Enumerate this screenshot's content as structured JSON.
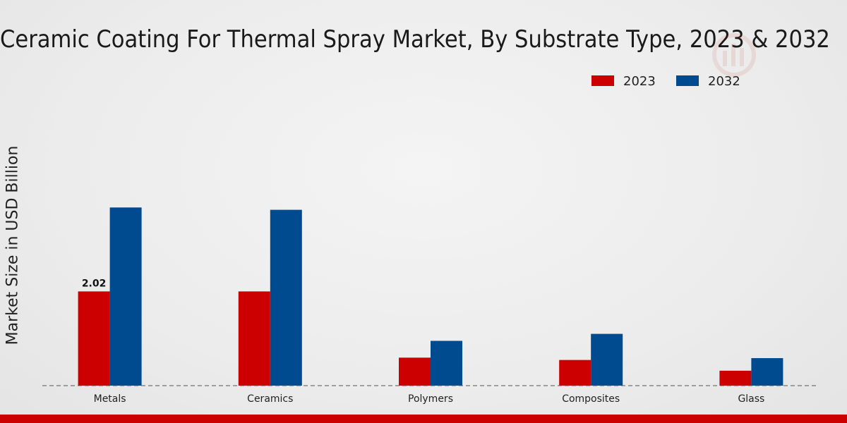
{
  "chart_data": {
    "type": "bar",
    "title": "Ceramic Coating For Thermal Spray Market, By Substrate Type, 2023 & 2032",
    "xlabel": "",
    "ylabel": "Market Size in USD Billion",
    "categories": [
      "Metals",
      "Ceramics",
      "Polymers",
      "Composites",
      "Glass"
    ],
    "series": [
      {
        "name": "2023",
        "color": "#cc0000",
        "values": [
          2.02,
          2.02,
          0.6,
          0.55,
          0.32
        ]
      },
      {
        "name": "2032",
        "color": "#004a8f",
        "values": [
          3.82,
          3.77,
          0.96,
          1.11,
          0.59
        ]
      }
    ],
    "data_labels": [
      {
        "series": 0,
        "index": 0,
        "text": "2.02"
      }
    ],
    "ylim": [
      0,
      6.5
    ],
    "grid": false,
    "legend_position": "top-right"
  }
}
